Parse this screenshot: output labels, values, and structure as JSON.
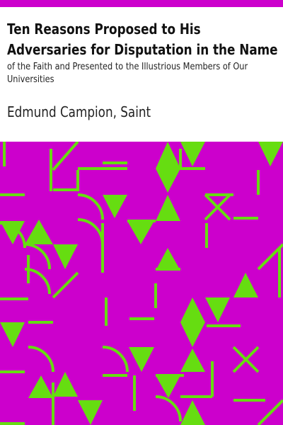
{
  "book": {
    "title": "Ten Reasons Proposed to His Adversaries for Disputation in the Name",
    "subtitle": "of the Faith and Presented to the Illustrious Members of Our Universities",
    "author": "Edmund Campion, Saint"
  },
  "colors": {
    "accent": "#cc00cc",
    "pattern_background": "#cc00cc",
    "pattern_foreground": "#66dd11",
    "text": "#111111"
  }
}
